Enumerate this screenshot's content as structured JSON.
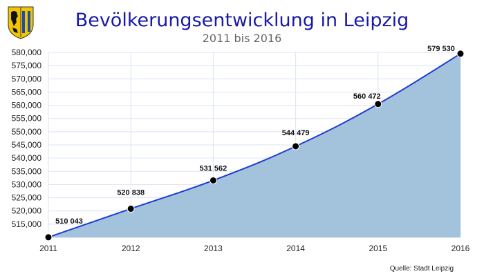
{
  "chart_data": {
    "type": "area",
    "title": "Bevölkerungsentwicklung in Leipzig",
    "subtitle": "2011 bis 2016",
    "xlabel": "",
    "ylabel": "",
    "categories": [
      "2011",
      "2012",
      "2013",
      "2014",
      "2015",
      "2016"
    ],
    "values": [
      510043,
      520838,
      531562,
      544479,
      560472,
      579530
    ],
    "data_labels": [
      "510 043",
      "520 838",
      "531 562",
      "544 479",
      "560 472",
      "579 530"
    ],
    "ylim": [
      510000,
      580000
    ],
    "yticks": [
      515000,
      520000,
      525000,
      530000,
      535000,
      540000,
      545000,
      550000,
      555000,
      560000,
      565000,
      570000,
      575000,
      580000
    ],
    "ytick_labels": [
      "515,000",
      "520,000",
      "525,000",
      "530,000",
      "535,000",
      "540,000",
      "545,000",
      "550,000",
      "555,000",
      "560,000",
      "565,000",
      "570,000",
      "575,000",
      "580,000"
    ],
    "grid": true,
    "legend": "none",
    "colors": {
      "area": "#a3c2db",
      "line": "#1f3bd1",
      "marker": "#000000",
      "grid": "#dde3f3",
      "title": "#1a1aa8"
    }
  },
  "source": "Quelle: Stadt Leipzig",
  "logo": {
    "icon": "leipzig-coat-of-arms-icon",
    "colors": {
      "shield": "#f2c500",
      "lion": "#111111",
      "stripes": "#1e4ea8"
    }
  }
}
